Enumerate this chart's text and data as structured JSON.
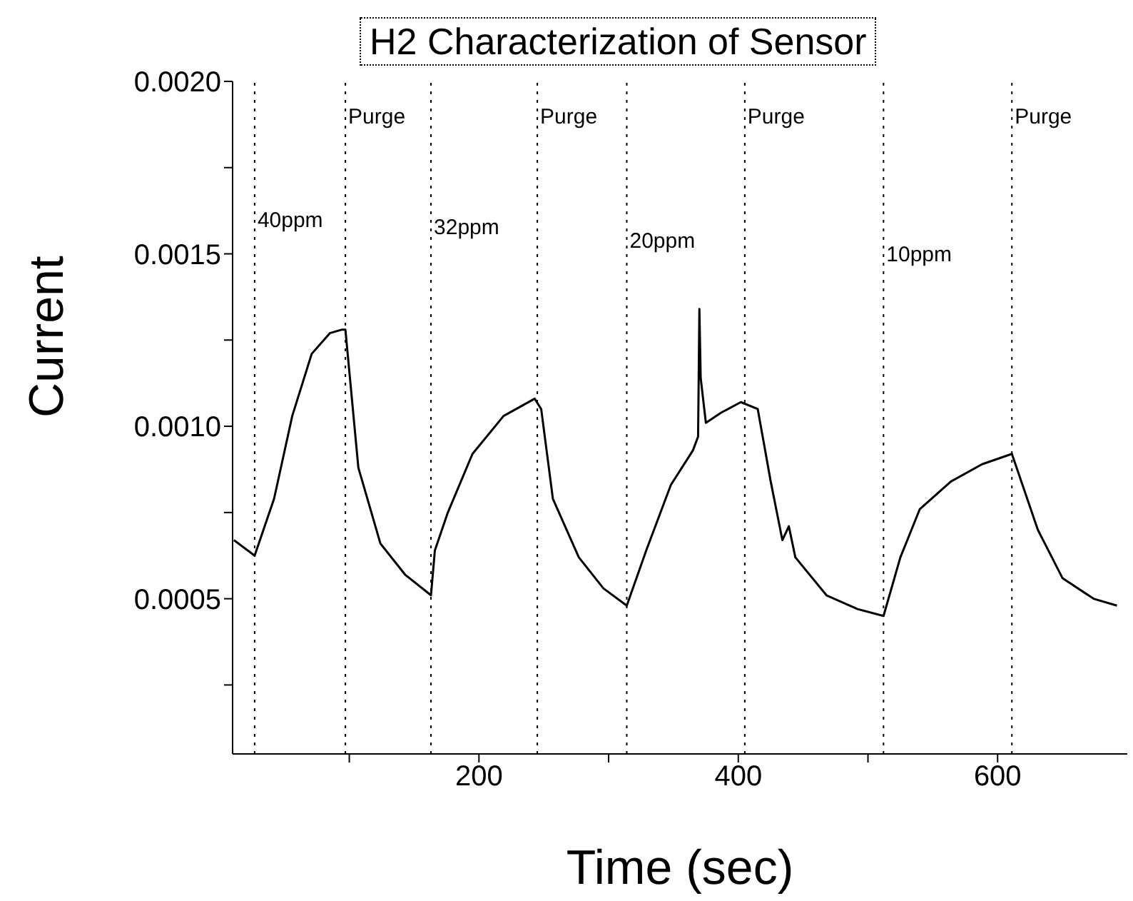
{
  "chart_data": {
    "type": "line",
    "title": "H2 Characterization of Sensor",
    "xlabel": "Time (sec)",
    "ylabel": "Current",
    "x": [
      11,
      27,
      42,
      56,
      71,
      85,
      94,
      97,
      107,
      124,
      143,
      163,
      166,
      176,
      195,
      219,
      243,
      248,
      257,
      277,
      296,
      314,
      329,
      348,
      365,
      369,
      370,
      371,
      375,
      387,
      402,
      415,
      425,
      434,
      439,
      444,
      468,
      492,
      512,
      525,
      540,
      564,
      588,
      611,
      631,
      650,
      674,
      692
    ],
    "series": [
      {
        "color": "#000000",
        "values": [
          0.00067,
          0.000625,
          0.00079,
          0.00103,
          0.00121,
          0.00127,
          0.00128,
          0.00128,
          0.00088,
          0.00066,
          0.00057,
          0.00051,
          0.00064,
          0.00075,
          0.00092,
          0.00103,
          0.00108,
          0.00105,
          0.00079,
          0.00062,
          0.00053,
          0.00048,
          0.00064,
          0.00083,
          0.00093,
          0.00097,
          0.00134,
          0.00114,
          0.00101,
          0.00104,
          0.00107,
          0.00105,
          0.00084,
          0.00067,
          0.00071,
          0.00062,
          0.00051,
          0.00047,
          0.00045,
          0.00062,
          0.00076,
          0.00084,
          0.00089,
          0.00092,
          0.0007,
          0.00056,
          0.0005,
          0.00048
        ]
      }
    ],
    "xlim": [
      10,
      700
    ],
    "xticks": [
      {
        "value": 100,
        "label": null
      },
      200,
      {
        "value": 300,
        "label": null
      },
      400,
      {
        "value": 500,
        "label": null
      },
      600
    ],
    "ylim": [
      5e-05,
      0.002
    ],
    "yticks": [
      {
        "value": 0.00025,
        "label": null
      },
      {
        "value": 0.0005,
        "label": "0.0005"
      },
      {
        "value": 0.00075,
        "label": null
      },
      {
        "value": 0.001,
        "label": "0.0010"
      },
      {
        "value": 0.00125,
        "label": null
      },
      {
        "value": 0.0015,
        "label": "0.0015"
      },
      {
        "value": 0.00175,
        "label": null
      },
      {
        "value": 0.002,
        "label": "0.0020"
      }
    ],
    "ref_lines": [
      {
        "axis": "x",
        "value": 27,
        "line_style": "dotted"
      },
      {
        "axis": "x",
        "value": 97,
        "line_style": "dotted"
      },
      {
        "axis": "x",
        "value": 163,
        "line_style": "dotted"
      },
      {
        "axis": "x",
        "value": 245,
        "line_style": "dotted"
      },
      {
        "axis": "x",
        "value": 314,
        "line_style": "dotted"
      },
      {
        "axis": "x",
        "value": 405,
        "line_style": "dotted"
      },
      {
        "axis": "x",
        "value": 512,
        "line_style": "dotted"
      },
      {
        "axis": "x",
        "value": 611,
        "line_style": "dotted"
      }
    ],
    "annotations": [
      {
        "text": "40ppm",
        "x": 27,
        "y": 0.0016
      },
      {
        "text": "Purge",
        "x": 97,
        "y": 0.0019
      },
      {
        "text": "32ppm",
        "x": 163,
        "y": 0.00158
      },
      {
        "text": "Purge",
        "x": 245,
        "y": 0.0019
      },
      {
        "text": "20ppm",
        "x": 314,
        "y": 0.00154
      },
      {
        "text": "Purge",
        "x": 405,
        "y": 0.0019
      },
      {
        "text": "10ppm",
        "x": 512,
        "y": 0.0015
      },
      {
        "text": "Purge",
        "x": 611,
        "y": 0.0019
      }
    ],
    "line_style": "solid",
    "marker": "none",
    "grid": false,
    "legend": false
  }
}
